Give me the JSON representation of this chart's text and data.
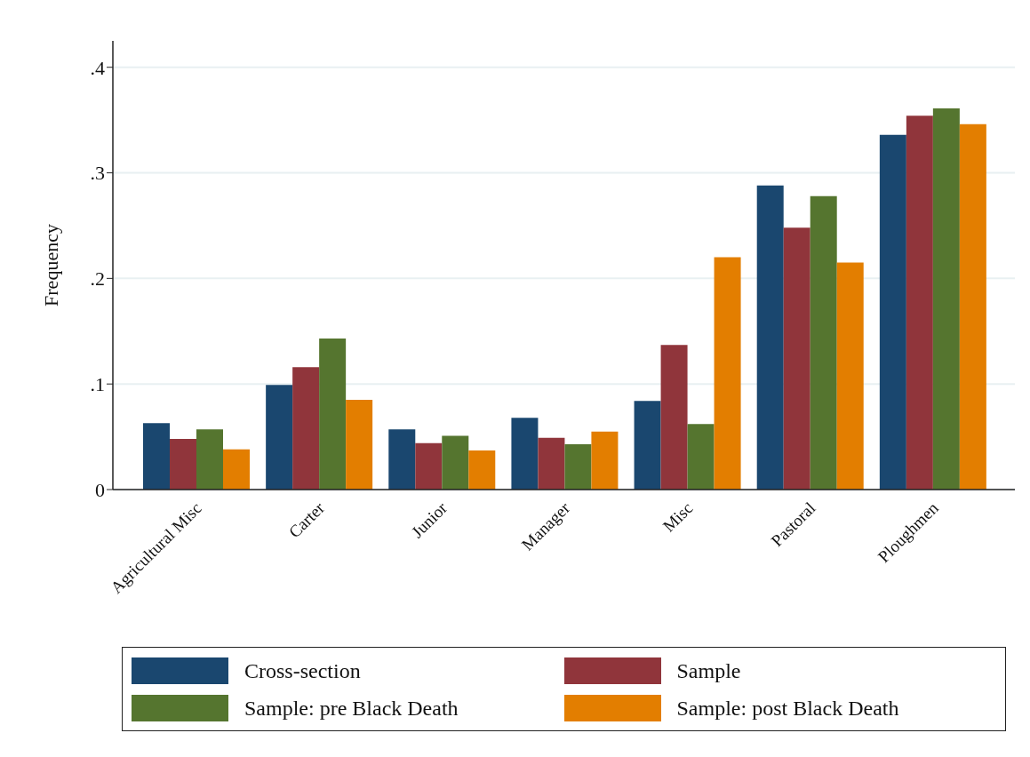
{
  "chart_data": {
    "type": "bar",
    "ylabel": "Frequency",
    "categories": [
      "Agricultural Misc",
      "Carter",
      "Junior",
      "Manager",
      "Misc",
      "Pastoral",
      "Ploughmen"
    ],
    "series": [
      {
        "name": "Cross-section",
        "color": "#1a476f",
        "values": [
          0.063,
          0.099,
          0.057,
          0.068,
          0.084,
          0.288,
          0.336
        ]
      },
      {
        "name": "Sample",
        "color": "#90353b",
        "values": [
          0.048,
          0.116,
          0.044,
          0.049,
          0.137,
          0.248,
          0.354
        ]
      },
      {
        "name": "Sample: pre Black Death",
        "color": "#55752f",
        "values": [
          0.057,
          0.143,
          0.051,
          0.043,
          0.062,
          0.278,
          0.361
        ]
      },
      {
        "name": "Sample: post Black Death",
        "color": "#e37e00",
        "values": [
          0.038,
          0.085,
          0.037,
          0.055,
          0.22,
          0.215,
          0.346
        ]
      }
    ],
    "ylim": [
      0,
      0.425
    ],
    "yticks": [
      {
        "value": 0,
        "label": "0"
      },
      {
        "value": 0.1,
        "label": ".1"
      },
      {
        "value": 0.2,
        "label": ".2"
      },
      {
        "value": 0.3,
        "label": ".3"
      },
      {
        "value": 0.4,
        "label": ".4"
      }
    ],
    "grid": "y",
    "legend": "bottom"
  }
}
